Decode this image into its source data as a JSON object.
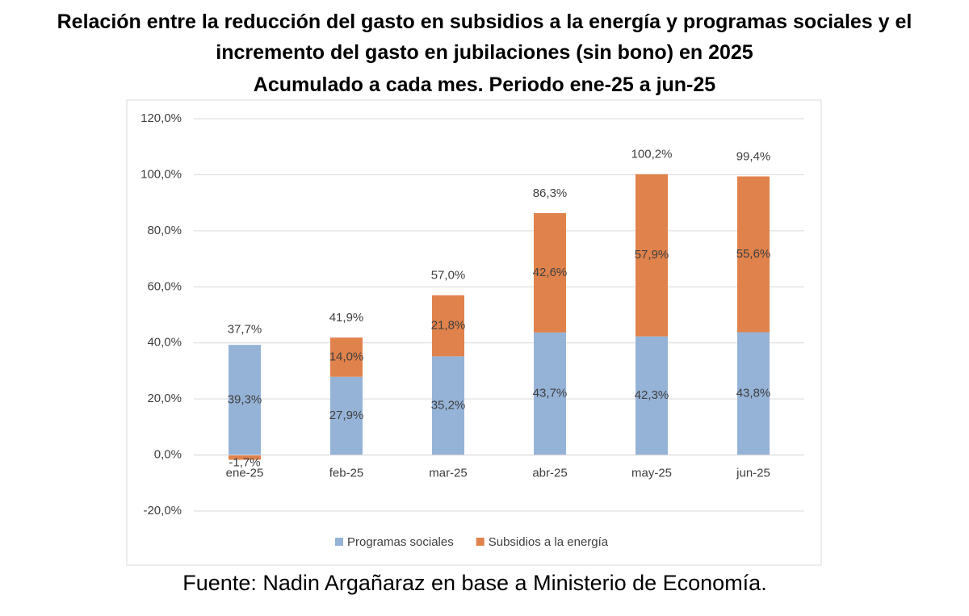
{
  "chart_data": {
    "type": "stacked_bar",
    "title": "Relación entre la reducción del gasto en subsidios a la energía y programas sociales y el incremento del gasto en jubilaciones (sin bono) en 2025",
    "subtitle": "Acumulado a cada mes. Periodo ene-25 a jun-25",
    "source": "Fuente: Nadin Argañaraz en base a Ministerio de Economía.",
    "categories": [
      "ene-25",
      "feb-25",
      "mar-25",
      "abr-25",
      "may-25",
      "jun-25"
    ],
    "series": [
      {
        "name": "Programas sociales",
        "color": "#95b3d7",
        "values": [
          39.3,
          27.9,
          35.2,
          43.7,
          42.3,
          43.8
        ],
        "value_labels": [
          "39,3%",
          "27,9%",
          "35,2%",
          "43,7%",
          "42,3%",
          "43,8%"
        ]
      },
      {
        "name": "Subsidios a la energía",
        "color": "#e0824b",
        "values": [
          -1.7,
          14.0,
          21.8,
          42.6,
          57.9,
          55.6
        ],
        "value_labels": [
          "-1,7%",
          "14,0%",
          "21,8%",
          "42,6%",
          "57,9%",
          "55,6%"
        ]
      }
    ],
    "totals": [
      37.7,
      41.9,
      57.0,
      86.3,
      100.2,
      99.4
    ],
    "total_labels": [
      "37,7%",
      "41,9%",
      "57,0%",
      "86,3%",
      "100,2%",
      "99,4%"
    ],
    "ylim": [
      -20,
      120
    ],
    "yticks": [
      {
        "value": -20,
        "label": "-20,0%"
      },
      {
        "value": 0,
        "label": "0,0%"
      },
      {
        "value": 20,
        "label": "20,0%"
      },
      {
        "value": 40,
        "label": "40,0%"
      },
      {
        "value": 60,
        "label": "60,0%"
      },
      {
        "value": 80,
        "label": "80,0%"
      },
      {
        "value": 100,
        "label": "100,0%"
      },
      {
        "value": 120,
        "label": "120,0%"
      }
    ],
    "grid": true,
    "legend": "bottom"
  }
}
